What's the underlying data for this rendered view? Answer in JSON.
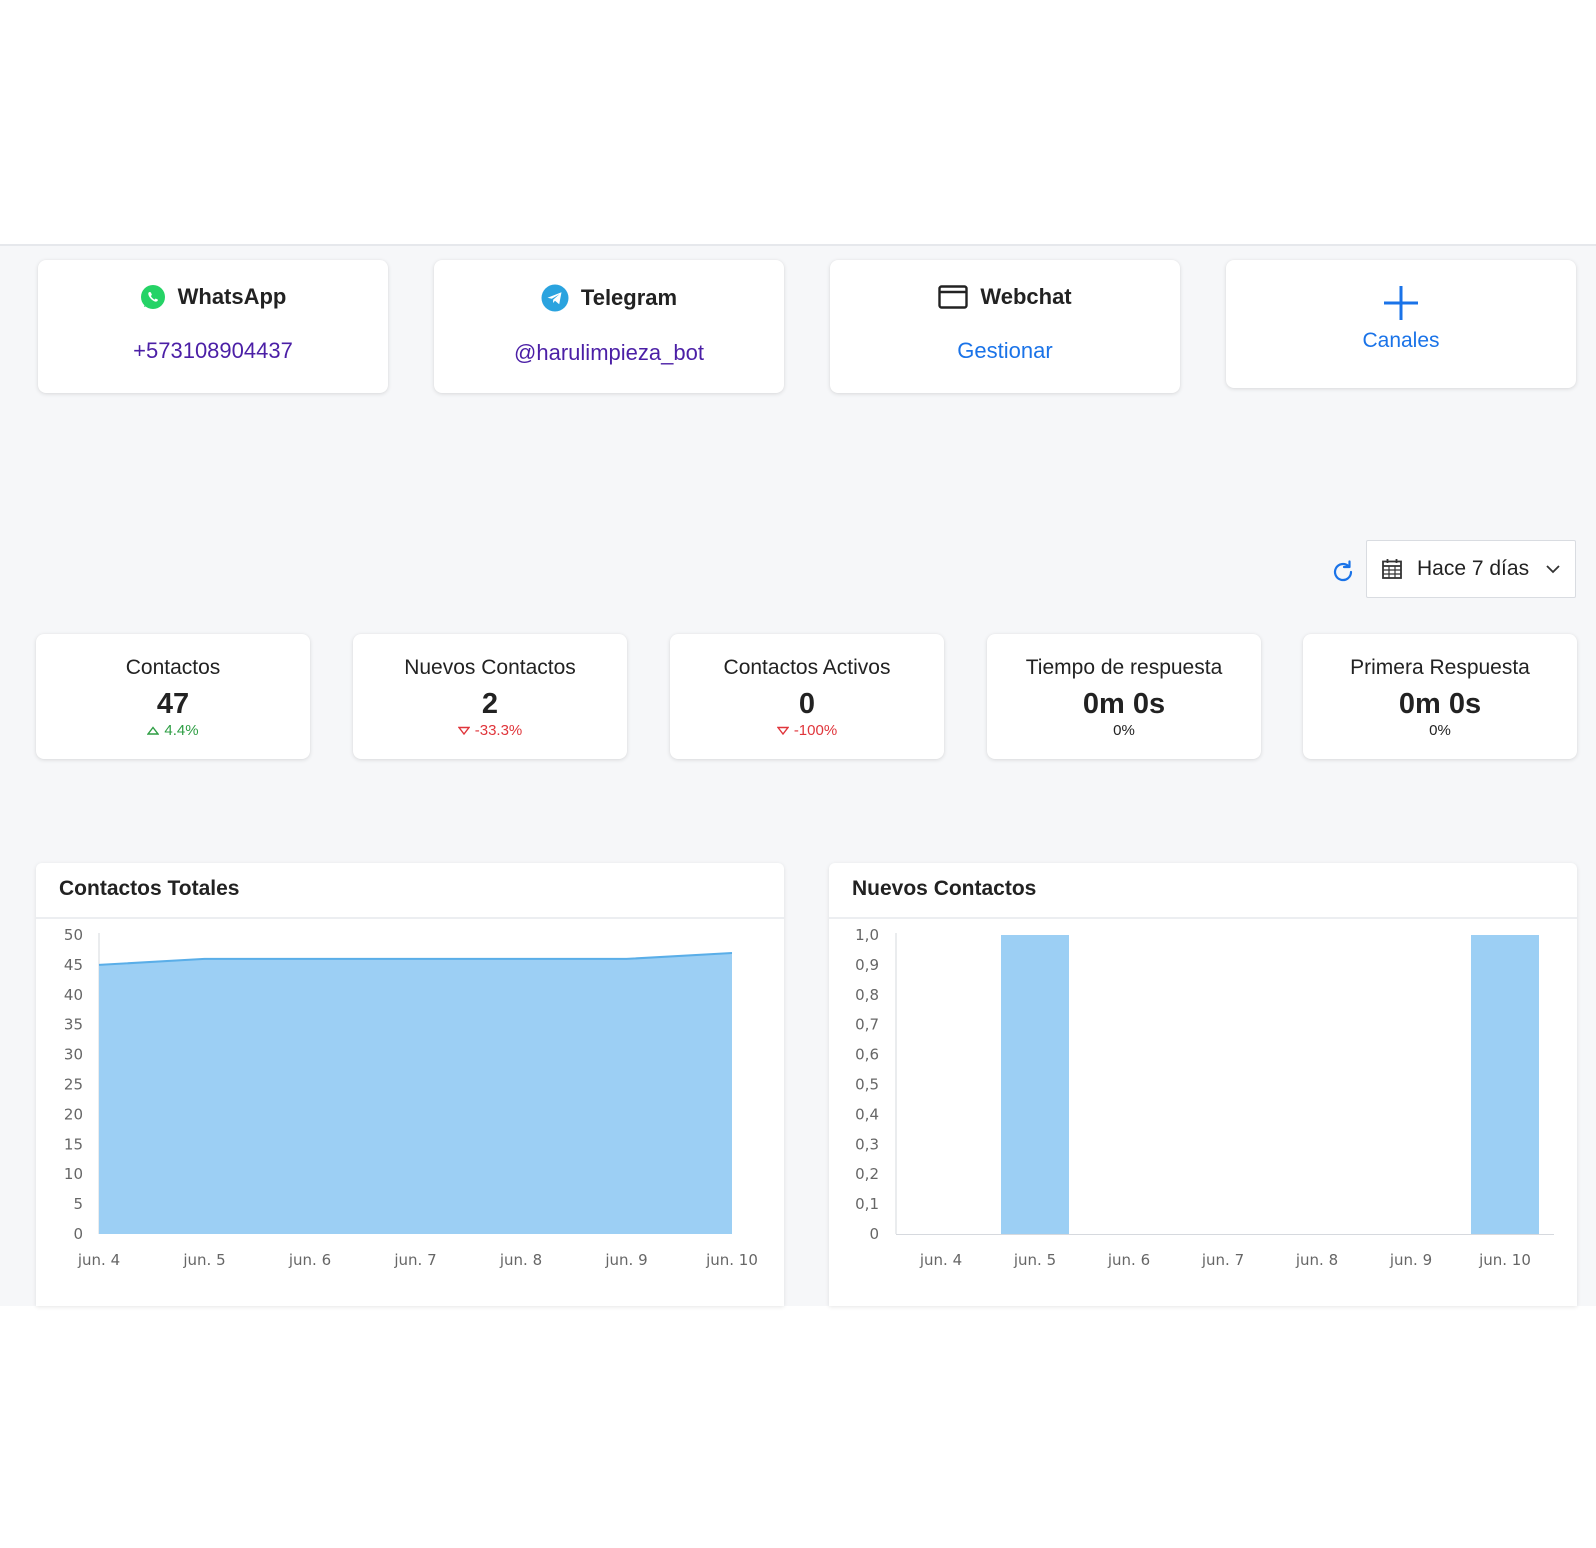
{
  "channels": [
    {
      "name": "WhatsApp",
      "value": "+573108904437",
      "icon": "whatsapp-icon"
    },
    {
      "name": "Telegram",
      "value": "@harulimpieza_bot",
      "icon": "telegram-icon"
    },
    {
      "name": "Webchat",
      "value": "Gestionar",
      "icon": "browser-window-icon"
    }
  ],
  "add_channel": {
    "label": "Canales",
    "icon": "plus-icon"
  },
  "filters": {
    "date_range": "Hace 7 días"
  },
  "stats": [
    {
      "title": "Contactos",
      "value": "47",
      "delta": "4.4%",
      "trend": "up"
    },
    {
      "title": "Nuevos Contactos",
      "value": "2",
      "delta": "-33.3%",
      "trend": "down"
    },
    {
      "title": "Contactos Activos",
      "value": "0",
      "delta": "-100%",
      "trend": "down"
    },
    {
      "title": "Tiempo de respuesta",
      "value": "0m 0s",
      "delta": "0%",
      "trend": "neutral"
    },
    {
      "title": "Primera Respuesta",
      "value": "0m 0s",
      "delta": "0%",
      "trend": "neutral"
    }
  ],
  "colors": {
    "accent": "#1a73e8",
    "link_purple": "#4b1fa6",
    "positive": "#2e9e44",
    "negative": "#e0353b",
    "series_fill": "#9ccff4",
    "series_line": "#5aaee8"
  },
  "chart_data": [
    {
      "type": "area",
      "title": "Contactos Totales",
      "categories": [
        "jun. 4",
        "jun. 5",
        "jun. 6",
        "jun. 7",
        "jun. 8",
        "jun. 9",
        "jun. 10"
      ],
      "values": [
        45,
        46,
        46,
        46,
        46,
        46,
        47
      ],
      "yticks": [
        "0",
        "5",
        "10",
        "15",
        "20",
        "25",
        "30",
        "35",
        "40",
        "45",
        "50"
      ],
      "ylim": [
        0,
        50
      ],
      "grid": false
    },
    {
      "type": "bar",
      "title": "Nuevos Contactos",
      "categories": [
        "jun. 4",
        "jun. 5",
        "jun. 6",
        "jun. 7",
        "jun. 8",
        "jun. 9",
        "jun. 10"
      ],
      "values": [
        0,
        1,
        0,
        0,
        0,
        0,
        1
      ],
      "yticks": [
        "0",
        "0,1",
        "0,2",
        "0,3",
        "0,4",
        "0,5",
        "0,6",
        "0,7",
        "0,8",
        "0,9",
        "1,0"
      ],
      "ylim": [
        0,
        1
      ],
      "grid": false
    }
  ]
}
